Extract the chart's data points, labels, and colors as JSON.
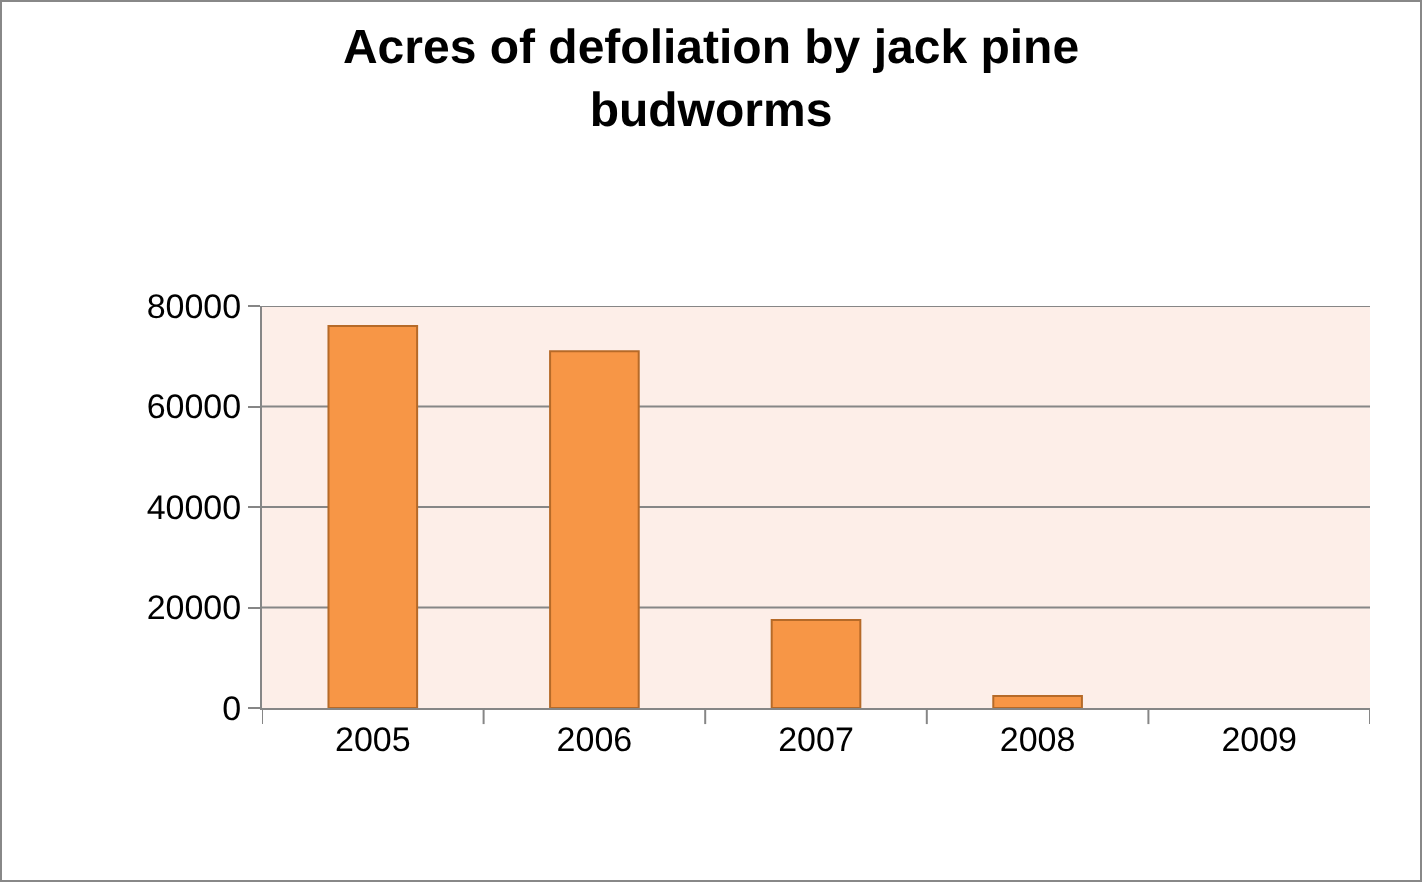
{
  "chart_data": {
    "type": "bar",
    "title": "Acres of defoliation by jack pine budworms",
    "categories": [
      "2005",
      "2006",
      "2007",
      "2008",
      "2009"
    ],
    "values": [
      76000,
      71000,
      17500,
      2400,
      0
    ],
    "color": "#f79646",
    "ylim": [
      0,
      80000
    ],
    "yticks": [
      0,
      20000,
      40000,
      60000,
      80000
    ],
    "grid": "y",
    "legend": false
  }
}
